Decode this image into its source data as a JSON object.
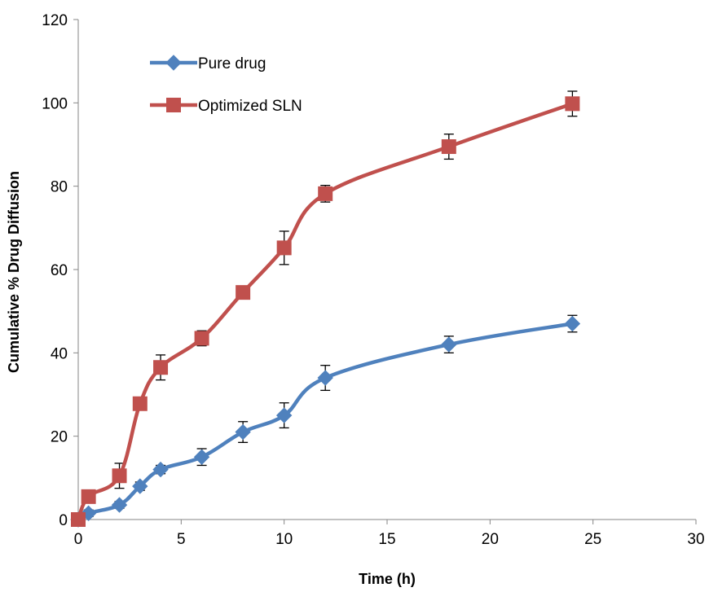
{
  "chart_data": {
    "type": "line",
    "title": "",
    "xlabel": "Time (h)",
    "ylabel": "Cumulative % Drug Diffusion",
    "xlim": [
      0,
      30
    ],
    "ylim": [
      0,
      120
    ],
    "x_ticks": [
      0,
      5,
      10,
      15,
      20,
      25,
      30
    ],
    "y_ticks": [
      0,
      20,
      40,
      60,
      80,
      100,
      120
    ],
    "grid": false,
    "legend_position": "top-left",
    "smooth_lines": true,
    "series": [
      {
        "name": "Pure drug",
        "color": "#4f81bd",
        "marker": "diamond",
        "x": [
          0,
          0.5,
          2,
          3,
          4,
          6,
          8,
          10,
          12,
          18,
          24
        ],
        "y": [
          0,
          1.5,
          3.5,
          8,
          12,
          15,
          21,
          25,
          34,
          42,
          47
        ],
        "error": [
          0,
          0.8,
          0.8,
          1.0,
          1.0,
          2.0,
          2.5,
          3.0,
          3.0,
          2.0,
          2.0
        ]
      },
      {
        "name": "Optimized SLN",
        "color": "#c0504d",
        "marker": "square",
        "x": [
          0,
          0.5,
          2,
          3,
          4,
          6,
          8,
          10,
          12,
          18,
          24
        ],
        "y": [
          0,
          5.5,
          10.5,
          27.8,
          36.5,
          43.5,
          54.5,
          65.2,
          78.2,
          89.5,
          99.8
        ],
        "error": [
          0,
          1.5,
          3.0,
          1.5,
          3.0,
          1.8,
          1.5,
          4.0,
          2.0,
          3.0,
          3.0
        ]
      }
    ]
  }
}
